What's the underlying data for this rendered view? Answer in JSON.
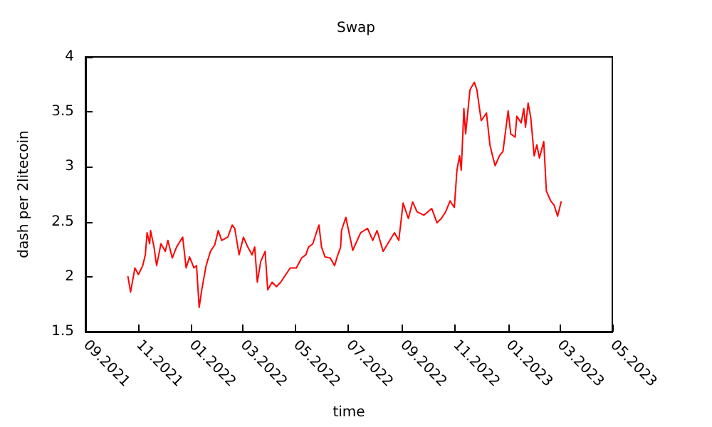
{
  "chart_data": {
    "type": "line",
    "title": "Swap",
    "xlabel": "time",
    "ylabel": "dash per 2litecoin",
    "x": [
      "2021-10-20",
      "2021-10-23",
      "2021-10-28",
      "2021-11-01",
      "2021-11-06",
      "2021-11-09",
      "2021-11-11",
      "2021-11-14",
      "2021-11-15",
      "2021-11-19",
      "2021-11-22",
      "2021-11-27",
      "2021-12-02",
      "2021-12-05",
      "2021-12-10",
      "2021-12-15",
      "2021-12-22",
      "2021-12-26",
      "2021-12-30",
      "2022-01-04",
      "2022-01-07",
      "2022-01-10",
      "2022-01-13",
      "2022-01-18",
      "2022-01-23",
      "2022-01-28",
      "2022-02-01",
      "2022-02-05",
      "2022-02-12",
      "2022-02-17",
      "2022-02-20",
      "2022-02-25",
      "2022-03-02",
      "2022-03-07",
      "2022-03-12",
      "2022-03-15",
      "2022-03-18",
      "2022-03-22",
      "2022-03-27",
      "2022-03-30",
      "2022-04-04",
      "2022-04-09",
      "2022-04-14",
      "2022-04-19",
      "2022-04-25",
      "2022-05-02",
      "2022-05-08",
      "2022-05-13",
      "2022-05-16",
      "2022-05-21",
      "2022-05-25",
      "2022-05-28",
      "2022-05-31",
      "2022-06-04",
      "2022-06-10",
      "2022-06-15",
      "2022-06-18",
      "2022-06-22",
      "2022-06-23",
      "2022-06-28",
      "2022-07-06",
      "2022-07-15",
      "2022-07-23",
      "2022-07-29",
      "2022-08-03",
      "2022-08-10",
      "2022-08-16",
      "2022-08-23",
      "2022-08-28",
      "2022-09-02",
      "2022-09-08",
      "2022-09-13",
      "2022-09-18",
      "2022-09-26",
      "2022-10-05",
      "2022-10-11",
      "2022-10-16",
      "2022-10-21",
      "2022-10-26",
      "2022-10-31",
      "2022-11-03",
      "2022-11-06",
      "2022-11-08",
      "2022-11-11",
      "2022-11-13",
      "2022-11-18",
      "2022-11-23",
      "2022-11-26",
      "2022-11-29",
      "2022-12-01",
      "2022-12-07",
      "2022-12-11",
      "2022-12-14",
      "2022-12-17",
      "2022-12-22",
      "2022-12-26",
      "2023-01-01",
      "2023-01-04",
      "2023-01-09",
      "2023-01-11",
      "2023-01-16",
      "2023-01-19",
      "2023-01-21",
      "2023-01-24",
      "2023-01-27",
      "2023-01-31",
      "2023-02-03",
      "2023-02-06",
      "2023-02-11",
      "2023-02-14",
      "2023-02-19",
      "2023-02-23",
      "2023-02-27",
      "2023-03-03"
    ],
    "series": [
      {
        "color": "#ff0000",
        "values": [
          2.0,
          1.86,
          2.08,
          2.02,
          2.1,
          2.2,
          2.4,
          2.3,
          2.42,
          2.27,
          2.1,
          2.3,
          2.23,
          2.33,
          2.17,
          2.27,
          2.36,
          2.08,
          2.18,
          2.08,
          2.1,
          1.72,
          1.88,
          2.1,
          2.23,
          2.29,
          2.42,
          2.33,
          2.36,
          2.47,
          2.44,
          2.2,
          2.36,
          2.27,
          2.2,
          2.27,
          1.95,
          2.14,
          2.23,
          1.88,
          1.95,
          1.91,
          1.95,
          2.01,
          2.08,
          2.08,
          2.17,
          2.2,
          2.27,
          2.3,
          2.4,
          2.47,
          2.27,
          2.18,
          2.17,
          2.1,
          2.18,
          2.27,
          2.42,
          2.54,
          2.24,
          2.4,
          2.44,
          2.33,
          2.42,
          2.23,
          2.31,
          2.4,
          2.33,
          2.67,
          2.53,
          2.68,
          2.59,
          2.56,
          2.62,
          2.49,
          2.53,
          2.59,
          2.69,
          2.63,
          2.97,
          3.1,
          2.97,
          3.53,
          3.3,
          3.7,
          3.77,
          3.7,
          3.53,
          3.42,
          3.49,
          3.2,
          3.1,
          3.01,
          3.1,
          3.14,
          3.51,
          3.3,
          3.27,
          3.46,
          3.4,
          3.53,
          3.36,
          3.58,
          3.45,
          3.1,
          3.2,
          3.08,
          3.23,
          2.78,
          2.69,
          2.65,
          2.55,
          2.68
        ]
      }
    ],
    "xlim": [
      "2021-09-01",
      "2023-05-01"
    ],
    "xticks": [
      {
        "value": "2021-09",
        "label": "09.2021"
      },
      {
        "value": "2021-11",
        "label": "11.2021"
      },
      {
        "value": "2022-01",
        "label": "01.2022"
      },
      {
        "value": "2022-03",
        "label": "03.2022"
      },
      {
        "value": "2022-05",
        "label": "05.2022"
      },
      {
        "value": "2022-07",
        "label": "07.2022"
      },
      {
        "value": "2022-09",
        "label": "09.2022"
      },
      {
        "value": "2022-11",
        "label": "11.2022"
      },
      {
        "value": "2023-01",
        "label": "01.2023"
      },
      {
        "value": "2023-03",
        "label": "03.2023"
      },
      {
        "value": "2023-05",
        "label": "05.2023"
      }
    ],
    "ylim": [
      1.5,
      4
    ],
    "yticks": [
      1.5,
      2,
      2.5,
      3,
      3.5,
      4
    ],
    "grid": false,
    "marker": "none",
    "line_style": "solid"
  }
}
